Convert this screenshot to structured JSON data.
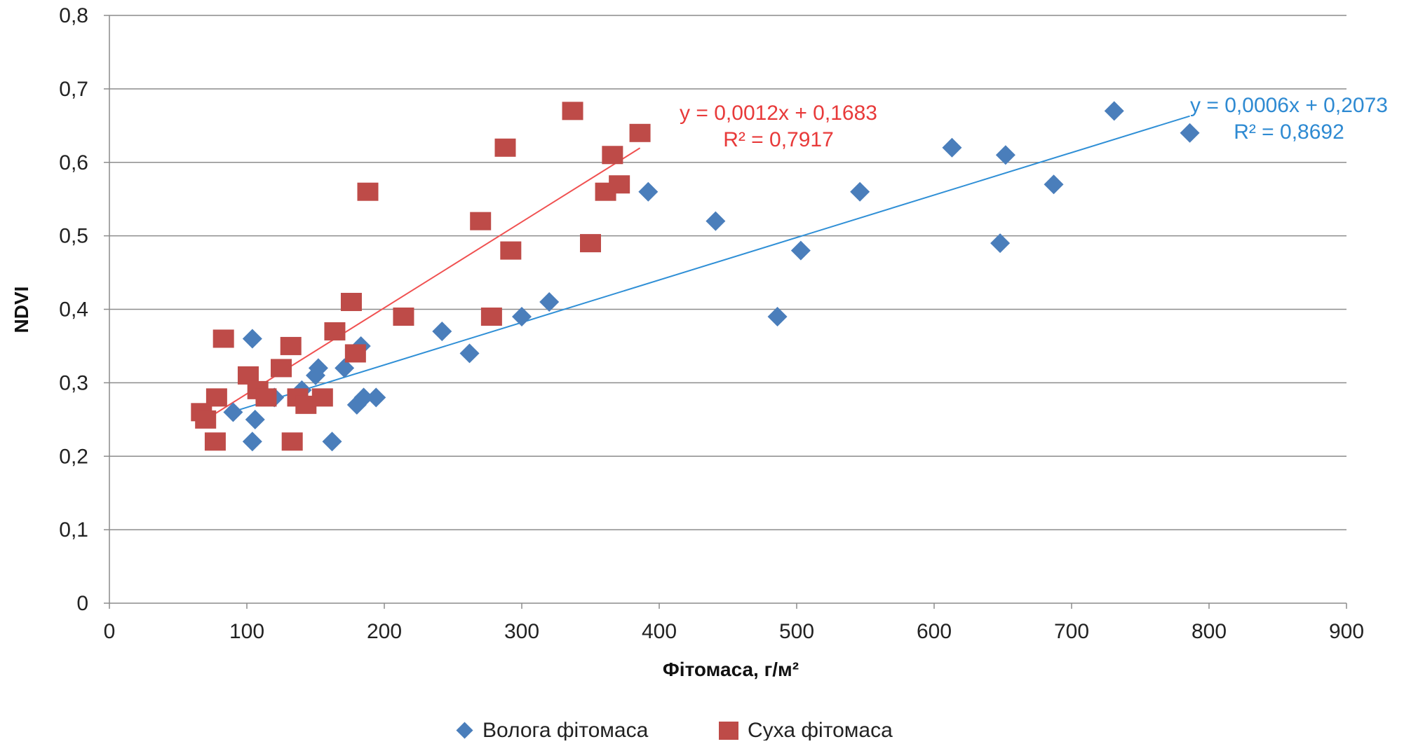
{
  "chart_data": {
    "type": "scatter",
    "xlabel": "Фітомаса, г/м²",
    "ylabel": "NDVI",
    "xlim": [
      0,
      900
    ],
    "ylim": [
      0,
      0.8
    ],
    "x_ticks": [
      "0",
      "100",
      "200",
      "300",
      "400",
      "500",
      "600",
      "700",
      "800",
      "900"
    ],
    "y_ticks": [
      "0",
      "0,1",
      "0,2",
      "0,3",
      "0,4",
      "0,5",
      "0,6",
      "0,7",
      "0,8"
    ],
    "grid": "horizontal",
    "legend_position": "bottom",
    "series": [
      {
        "name": "Волога фітомаса",
        "color": "#4a7ebb",
        "marker": "diamond",
        "points": [
          [
            90,
            0.26
          ],
          [
            104,
            0.36
          ],
          [
            104,
            0.22
          ],
          [
            106,
            0.25
          ],
          [
            120,
            0.28
          ],
          [
            140,
            0.29
          ],
          [
            150,
            0.31
          ],
          [
            152,
            0.32
          ],
          [
            162,
            0.22
          ],
          [
            171,
            0.32
          ],
          [
            180,
            0.27
          ],
          [
            183,
            0.35
          ],
          [
            185,
            0.28
          ],
          [
            194,
            0.28
          ],
          [
            242,
            0.37
          ],
          [
            262,
            0.34
          ],
          [
            300,
            0.39
          ],
          [
            320,
            0.41
          ],
          [
            392,
            0.56
          ],
          [
            441,
            0.52
          ],
          [
            486,
            0.39
          ],
          [
            503,
            0.48
          ],
          [
            546,
            0.56
          ],
          [
            613,
            0.62
          ],
          [
            648,
            0.49
          ],
          [
            652,
            0.61
          ],
          [
            687,
            0.57
          ],
          [
            731,
            0.67
          ],
          [
            786,
            0.64
          ]
        ],
        "trendline": {
          "x_range": [
            90,
            786
          ],
          "equation": "y = 0,0006x + 0,2073",
          "r2": "R² = 0,8692"
        }
      },
      {
        "name": "Суха фітомаса",
        "color": "#be4b48",
        "marker": "square",
        "points": [
          [
            67,
            0.26
          ],
          [
            70,
            0.25
          ],
          [
            77,
            0.22
          ],
          [
            78,
            0.28
          ],
          [
            83,
            0.36
          ],
          [
            101,
            0.31
          ],
          [
            108,
            0.29
          ],
          [
            114,
            0.28
          ],
          [
            125,
            0.32
          ],
          [
            132,
            0.35
          ],
          [
            133,
            0.22
          ],
          [
            137,
            0.28
          ],
          [
            143,
            0.27
          ],
          [
            155,
            0.28
          ],
          [
            164,
            0.37
          ],
          [
            176,
            0.41
          ],
          [
            179,
            0.34
          ],
          [
            188,
            0.56
          ],
          [
            214,
            0.39
          ],
          [
            270,
            0.52
          ],
          [
            278,
            0.39
          ],
          [
            288,
            0.62
          ],
          [
            292,
            0.48
          ],
          [
            337,
            0.67
          ],
          [
            350,
            0.49
          ],
          [
            361,
            0.56
          ],
          [
            366,
            0.61
          ],
          [
            371,
            0.57
          ],
          [
            386,
            0.64
          ]
        ],
        "trendline": {
          "x_range": [
            67,
            386
          ],
          "equation": "y = 0,0012x + 0,1683",
          "r2": "R² = 0,7917"
        }
      }
    ]
  },
  "legend_entries": [
    "Волога фітомаса",
    "Суха фітомаса"
  ]
}
